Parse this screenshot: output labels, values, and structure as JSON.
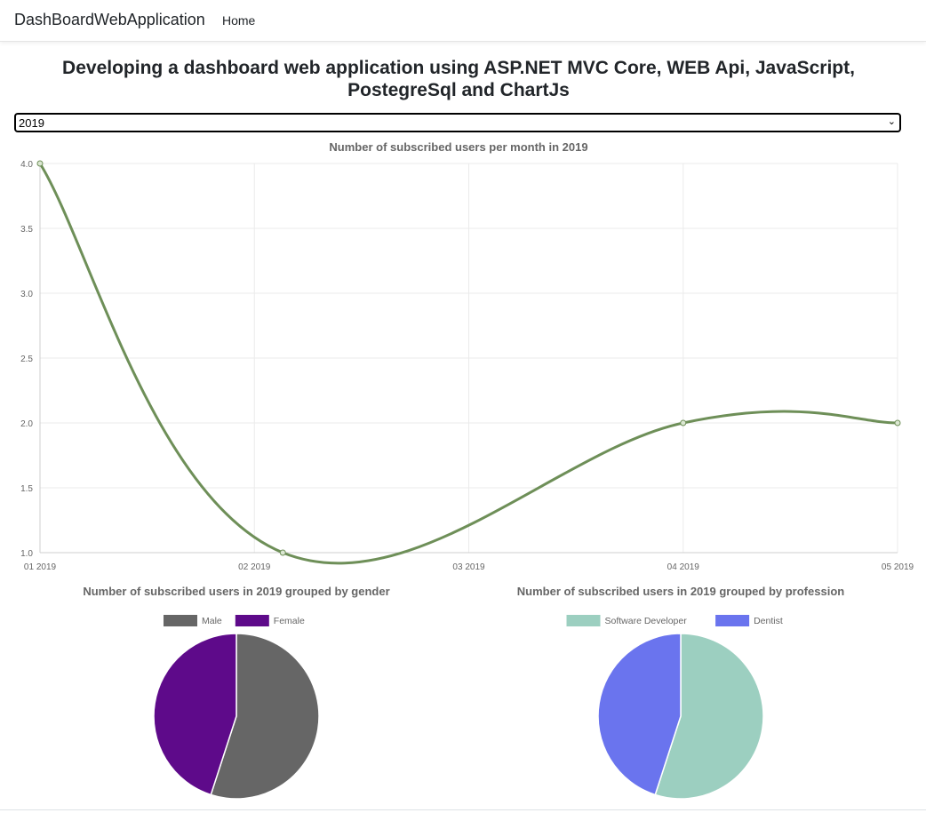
{
  "navbar": {
    "brand": "DashBoardWebApplication",
    "home_label": "Home"
  },
  "page": {
    "title": "Developing a dashboard web application using ASP.NET MVC Core, WEB Api, JavaScript, PostegreSql and ChartJs"
  },
  "year_select": {
    "value": "2019"
  },
  "chart_data": [
    {
      "type": "line",
      "title": "Number of subscribed users per month in 2019",
      "x": [
        "01 2019",
        "02 2019",
        "03 2019",
        "04 2019",
        "05 2019"
      ],
      "points": [
        {
          "x": "01 2019",
          "y": 4
        },
        {
          "x": "02 2019",
          "y": 1
        },
        {
          "x": "04 2019",
          "y": 2
        },
        {
          "x": "05 2019",
          "y": 2
        }
      ],
      "ylim": [
        1.0,
        4.0
      ],
      "yticks": [
        "1.0",
        "1.5",
        "2.0",
        "2.5",
        "3.0",
        "3.5",
        "4.0"
      ],
      "grid": true,
      "legend": "none",
      "color": "#6e8f58"
    },
    {
      "type": "pie",
      "title": "Number of subscribed users in 2019 grouped by gender",
      "categories": [
        "Male",
        "Female"
      ],
      "values": [
        55,
        45
      ],
      "colors": [
        "#666666",
        "#5e0a8a"
      ],
      "legend": "top"
    },
    {
      "type": "pie",
      "title": "Number of subscribed users in 2019 grouped by profession",
      "categories": [
        "Software Developer",
        "Dentist"
      ],
      "values": [
        55,
        45
      ],
      "colors": [
        "#9ccfc0",
        "#6a74ee"
      ],
      "legend": "top"
    }
  ]
}
